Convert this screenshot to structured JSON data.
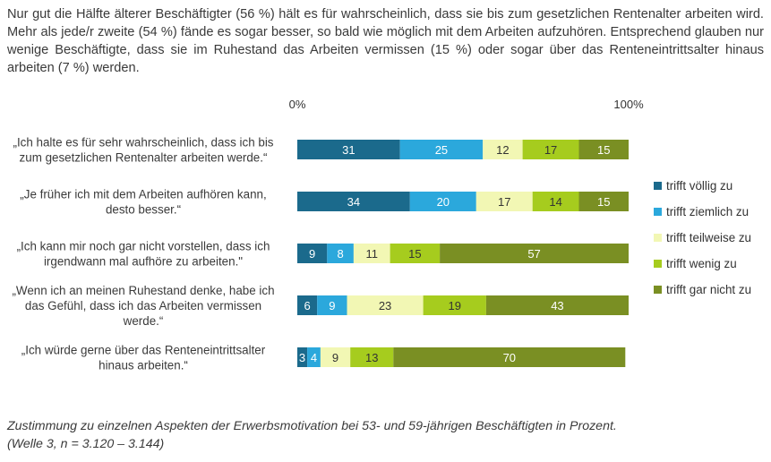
{
  "intro": "Nur gut die Hälfte älterer Beschäftigter (56 %) hält es für wahrscheinlich, dass sie bis zum gesetzlichen Rentenalter arbeiten wird. Mehr als jede/r zweite (54 %) fände es sogar besser, so bald wie möglich mit dem Arbeiten aufzuhören. Entsprechend glauben nur wenige Beschäftigte, dass sie im Ruhestand das Arbeiten vermissen (15 %) oder sogar über das Renteneintrittsalter hinaus arbeiten (7 %) werden.",
  "caption": {
    "line1": "Zustimmung zu einzelnen Aspekten der Erwerbsmotivation bei 53- und 59-jährigen Beschäftigten in Prozent.",
    "line2": "(Welle 3, n = 3.120 – 3.144)"
  },
  "colors": {
    "trifft völlig zu": "#1b6a8c",
    "trifft ziemlich zu": "#2ba8dc",
    "trifft teilweise zu": "#f2f7b4",
    "trifft wenig zu": "#a6cc1e",
    "trifft gar nicht zu": "#7a8f23",
    "dark_text": "#ffffff",
    "light_text": "#333333"
  },
  "chart_data": {
    "type": "bar",
    "orientation": "horizontal",
    "stacked": true,
    "xlim": [
      0,
      100
    ],
    "x_ticks": [
      "0%",
      "100%"
    ],
    "legend_position": "right",
    "categories": [
      [
        "„Ich halte es für sehr wahrscheinlich, dass ich bis",
        "zum gesetzlichen Rentenalter arbeiten werde.“"
      ],
      [
        "„Je früher ich mit dem Arbeiten aufhören kann,",
        "desto besser.“"
      ],
      [
        "„Ich kann mir noch gar nicht vorstellen, dass ich",
        "irgendwann mal aufhöre zu arbeiten.\""
      ],
      [
        "„Wenn ich an meinen Ruhestand denke, habe ich",
        "das Gefühl, dass ich das Arbeiten vermissen",
        "werde.“"
      ],
      [
        "„Ich würde gerne über das Renteneintrittsalter",
        "hinaus arbeiten.“"
      ]
    ],
    "series": [
      {
        "name": "trifft völlig zu",
        "values": [
          31,
          34,
          9,
          6,
          3
        ]
      },
      {
        "name": "trifft ziemlich zu",
        "values": [
          25,
          20,
          8,
          9,
          4
        ]
      },
      {
        "name": "trifft teilweise zu",
        "values": [
          12,
          17,
          11,
          23,
          9
        ]
      },
      {
        "name": "trifft wenig zu",
        "values": [
          17,
          14,
          15,
          19,
          13
        ]
      },
      {
        "name": "trifft gar nicht zu",
        "values": [
          15,
          15,
          57,
          43,
          70
        ]
      }
    ]
  }
}
